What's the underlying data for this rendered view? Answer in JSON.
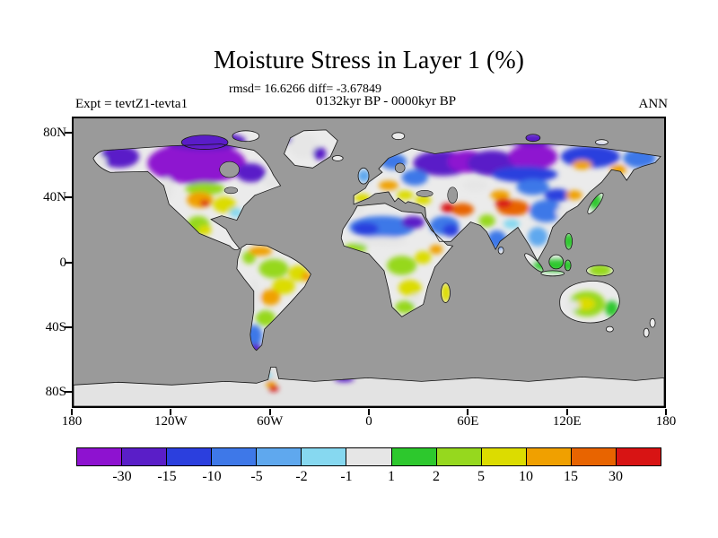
{
  "header": {
    "title": "Moisture Stress in Layer 1 (%)",
    "stats_line": "rmsd= 16.6266 diff= -3.67849",
    "period_line": "0132kyr BP - 0000kyr BP",
    "experiment_label": "Expt = tevtZ1-tevta1",
    "season_label": "ANN"
  },
  "axes": {
    "lat_ticks": [
      {
        "label": "80N",
        "lat": 80
      },
      {
        "label": "40N",
        "lat": 40
      },
      {
        "label": "0",
        "lat": 0
      },
      {
        "label": "40S",
        "lat": -40
      },
      {
        "label": "80S",
        "lat": -80
      }
    ],
    "lon_ticks": [
      {
        "label": "180",
        "lon": -180
      },
      {
        "label": "120W",
        "lon": -120
      },
      {
        "label": "60W",
        "lon": -60
      },
      {
        "label": "0",
        "lon": 0
      },
      {
        "label": "60E",
        "lon": 60
      },
      {
        "label": "120E",
        "lon": 120
      },
      {
        "label": "180",
        "lon": 180
      }
    ]
  },
  "colorbar": {
    "tick_labels": [
      "-30",
      "-15",
      "-10",
      "-5",
      "-2",
      "-1",
      "1",
      "2",
      "5",
      "10",
      "15",
      "30"
    ],
    "segments": [
      {
        "range": "< -30",
        "color": "#8E12D0"
      },
      {
        "range": "-30 to -15",
        "color": "#5A1EC8"
      },
      {
        "range": "-15 to -10",
        "color": "#2B3FDE"
      },
      {
        "range": "-10 to -5",
        "color": "#3E78E8"
      },
      {
        "range": "-5 to -2",
        "color": "#5FA8EE"
      },
      {
        "range": "-2 to -1",
        "color": "#86D8F0"
      },
      {
        "range": "-1 to 1",
        "color": "#E6E6E6"
      },
      {
        "range": "1 to 2",
        "color": "#2DC82D"
      },
      {
        "range": "2 to 5",
        "color": "#96D81E"
      },
      {
        "range": "5 to 10",
        "color": "#DCDC00"
      },
      {
        "range": "10 to 15",
        "color": "#F0A000"
      },
      {
        "range": "15 to 30",
        "color": "#E86400"
      },
      {
        "range": "> 30",
        "color": "#D81414"
      }
    ]
  },
  "map": {
    "ocean_color": "#9A9A9A",
    "land_base_color": "#EBEBEB",
    "antarctica_color": "#E3E3E3",
    "water_bodies": [
      {
        "name": "hudson-bay",
        "lon": -85,
        "lat": 58,
        "rlon": 6,
        "rlat": 5
      },
      {
        "name": "great-lakes",
        "lon": -84,
        "lat": 45,
        "rlon": 4,
        "rlat": 2
      },
      {
        "name": "baltic-sea",
        "lon": 19,
        "lat": 59,
        "rlon": 3,
        "rlat": 3
      },
      {
        "name": "black-sea",
        "lon": 34,
        "lat": 43,
        "rlon": 5,
        "rlat": 2
      },
      {
        "name": "caspian-sea",
        "lon": 51,
        "lat": 42,
        "rlon": 3,
        "rlat": 5
      }
    ]
  },
  "chart_data": {
    "type": "heatmap",
    "title": "Moisture Stress in Layer 1 (%)",
    "units": "%",
    "projection": "equirectangular",
    "lon_range": [
      -180,
      180
    ],
    "lat_range": [
      -90,
      90
    ],
    "rmsd": 16.6266,
    "diff": -3.67849,
    "scale_breaks": [
      -30,
      -15,
      -10,
      -5,
      -2,
      -1,
      1,
      2,
      5,
      10,
      15,
      30
    ],
    "legend_position": "bottom",
    "regions": [
      {
        "name": "canada-purple-core",
        "lon": -105,
        "lat": 62,
        "rlon": 30,
        "rlat": 13,
        "band": 0
      },
      {
        "name": "canadian-arctic-violet",
        "lon": -100,
        "lat": 76,
        "rlon": 25,
        "rlat": 6,
        "band": 1
      },
      {
        "name": "alaska-violet",
        "lon": -152,
        "lat": 66,
        "rlon": 12,
        "rlat": 7,
        "band": 1
      },
      {
        "name": "quebec-violet",
        "lon": -72,
        "lat": 56,
        "rlon": 9,
        "rlat": 6,
        "band": 1
      },
      {
        "name": "alaska-west-white",
        "lon": -165,
        "lat": 63,
        "rlon": 5,
        "rlat": 4,
        "band": 6
      },
      {
        "name": "newfoundland-white",
        "lon": -59,
        "lat": 50,
        "rlon": 5,
        "rlat": 4,
        "band": 6
      },
      {
        "name": "pacific-nw-white",
        "lon": -123,
        "lat": 46,
        "rlon": 4,
        "rlat": 7,
        "band": 6
      },
      {
        "name": "us-plains-green",
        "lon": -100,
        "lat": 46,
        "rlon": 12,
        "rlat": 4,
        "band": 8
      },
      {
        "name": "us-east-yellow",
        "lon": -88,
        "lat": 36,
        "rlon": 7,
        "rlat": 5,
        "band": 9
      },
      {
        "name": "us-central-orange",
        "lon": -103,
        "lat": 39,
        "rlon": 8,
        "rlat": 5,
        "band": 10
      },
      {
        "name": "us-central-red",
        "lon": -100,
        "lat": 37,
        "rlon": 3,
        "rlat": 2,
        "band": 12
      },
      {
        "name": "us-southeast-cyan",
        "lon": -81,
        "lat": 31,
        "rlon": 4,
        "rlat": 3,
        "band": 5
      },
      {
        "name": "mexico-green",
        "lon": -104,
        "lat": 23,
        "rlon": 7,
        "rlat": 6,
        "band": 8
      },
      {
        "name": "mexico-yellow",
        "lon": -100,
        "lat": 20,
        "rlon": 4,
        "rlat": 3,
        "band": 9
      },
      {
        "name": "greenland-white",
        "lon": -40,
        "lat": 73,
        "rlon": 9,
        "rlat": 8,
        "band": 6
      },
      {
        "name": "greenland-east-violet",
        "lon": -30,
        "lat": 68,
        "rlon": 4,
        "rlat": 4,
        "band": 1
      },
      {
        "name": "greenland-nw-violet",
        "lon": -52,
        "lat": 77,
        "rlon": 5,
        "rlat": 3,
        "band": 1
      },
      {
        "name": "amazon-green",
        "lon": -58,
        "lat": -4,
        "rlon": 9,
        "rlat": 6,
        "band": 8
      },
      {
        "name": "colombia-green",
        "lon": -73,
        "lat": 3,
        "rlon": 4,
        "rlat": 4,
        "band": 8
      },
      {
        "name": "venezuela-orange",
        "lon": -66,
        "lat": 7,
        "rlon": 7,
        "rlat": 3,
        "band": 10
      },
      {
        "name": "brazil-ne-yellow",
        "lon": -43,
        "lat": -7,
        "rlon": 6,
        "rlat": 5,
        "band": 9
      },
      {
        "name": "brazil-ne-orange",
        "lon": -38,
        "lat": -9,
        "rlon": 3,
        "rlat": 3,
        "band": 10
      },
      {
        "name": "brazil-central-yellow",
        "lon": -52,
        "lat": -15,
        "rlon": 7,
        "rlat": 5,
        "band": 9
      },
      {
        "name": "chaco-orange",
        "lon": -60,
        "lat": -22,
        "rlon": 6,
        "rlat": 5,
        "band": 10
      },
      {
        "name": "andes-white",
        "lon": -70,
        "lat": -20,
        "rlon": 3,
        "rlat": 10,
        "band": 6
      },
      {
        "name": "argentina-green",
        "lon": -63,
        "lat": -35,
        "rlon": 6,
        "rlat": 5,
        "band": 8
      },
      {
        "name": "patagonia-blue",
        "lon": -70,
        "lat": -46,
        "rlon": 5,
        "rlat": 7,
        "band": 3
      },
      {
        "name": "tierra-del-fuego-violet",
        "lon": -69,
        "lat": -54,
        "rlon": 4,
        "rlat": 3,
        "band": 1
      },
      {
        "name": "nw-russia-violet",
        "lon": 45,
        "lat": 62,
        "rlon": 18,
        "rlat": 8,
        "band": 1
      },
      {
        "name": "ural-purple",
        "lon": 60,
        "lat": 63,
        "rlon": 12,
        "rlat": 7,
        "band": 0
      },
      {
        "name": "scandinavia-blue",
        "lon": 15,
        "lat": 63,
        "rlon": 8,
        "rlat": 5,
        "band": 3
      },
      {
        "name": "east-europe-blue",
        "lon": 28,
        "lat": 53,
        "rlon": 8,
        "rlat": 5,
        "band": 3
      },
      {
        "name": "uk-blue",
        "lon": -3,
        "lat": 54,
        "rlon": 4,
        "rlat": 4,
        "band": 4
      },
      {
        "name": "spain-yellow",
        "lon": -4,
        "lat": 40,
        "rlon": 5,
        "rlat": 3,
        "band": 9
      },
      {
        "name": "central-europe-orange",
        "lon": 12,
        "lat": 48,
        "rlon": 6,
        "rlat": 3,
        "band": 10
      },
      {
        "name": "balkans-yellow",
        "lon": 22,
        "lat": 42,
        "rlon": 5,
        "rlat": 3,
        "band": 9
      },
      {
        "name": "anatolia-yellow",
        "lon": 33,
        "lat": 39,
        "rlon": 5,
        "rlat": 3,
        "band": 9
      },
      {
        "name": "west-siberia-violet",
        "lon": 75,
        "lat": 62,
        "rlon": 15,
        "rlat": 8,
        "band": 1
      },
      {
        "name": "central-siberia-purple",
        "lon": 100,
        "lat": 66,
        "rlon": 15,
        "rlat": 8,
        "band": 0
      },
      {
        "name": "arctic-russia-violet",
        "lon": 100,
        "lat": 77,
        "rlon": 20,
        "rlat": 4,
        "band": 1
      },
      {
        "name": "east-siberia-blue",
        "lon": 135,
        "lat": 66,
        "rlon": 18,
        "rlat": 7,
        "band": 2
      },
      {
        "name": "chukotka-blue",
        "lon": 165,
        "lat": 65,
        "rlon": 10,
        "rlat": 6,
        "band": 3
      },
      {
        "name": "south-siberia-blue",
        "lon": 95,
        "lat": 55,
        "rlon": 20,
        "rlat": 5,
        "band": 2
      },
      {
        "name": "mongolia-blue",
        "lon": 100,
        "lat": 47,
        "rlon": 10,
        "rlat": 5,
        "band": 3
      },
      {
        "name": "kazakh-white",
        "lon": 65,
        "lat": 48,
        "rlon": 8,
        "rlat": 4,
        "band": 6
      },
      {
        "name": "yakutia-orange",
        "lon": 130,
        "lat": 61,
        "rlon": 6,
        "rlat": 3,
        "band": 10
      },
      {
        "name": "okhotsk-orange",
        "lon": 152,
        "lat": 58,
        "rlon": 5,
        "rlat": 3,
        "band": 10
      },
      {
        "name": "north-china-blue",
        "lon": 115,
        "lat": 42,
        "rlon": 8,
        "rlat": 4,
        "band": 2
      },
      {
        "name": "china-blue",
        "lon": 108,
        "lat": 32,
        "rlon": 10,
        "rlat": 7,
        "band": 3
      },
      {
        "name": "east-china-white",
        "lon": 118,
        "lat": 31,
        "rlon": 4,
        "rlat": 4,
        "band": 6
      },
      {
        "name": "manchuria-orange",
        "lon": 125,
        "lat": 42,
        "rlon": 5,
        "rlat": 3,
        "band": 10
      },
      {
        "name": "japan-green",
        "lon": 138,
        "lat": 38,
        "rlon": 4,
        "rlat": 5,
        "band": 7
      },
      {
        "name": "indochina-blue",
        "lon": 103,
        "lat": 16,
        "rlon": 6,
        "rlat": 6,
        "band": 4
      },
      {
        "name": "south-india-blue",
        "lon": 78,
        "lat": 14,
        "rlon": 6,
        "rlat": 6,
        "band": 3
      },
      {
        "name": "nw-india-green",
        "lon": 72,
        "lat": 26,
        "rlon": 5,
        "rlat": 4,
        "band": 8
      },
      {
        "name": "ne-india-cyan",
        "lon": 87,
        "lat": 24,
        "rlon": 5,
        "rlat": 3,
        "band": 5
      },
      {
        "name": "xinjiang-orange",
        "lon": 80,
        "lat": 42,
        "rlon": 6,
        "rlat": 3,
        "band": 10
      },
      {
        "name": "tibet-dark-orange",
        "lon": 88,
        "lat": 34,
        "rlon": 10,
        "rlat": 5,
        "band": 11
      },
      {
        "name": "tibet-red",
        "lon": 82,
        "lat": 37,
        "rlon": 5,
        "rlat": 3,
        "band": 12
      },
      {
        "name": "iran-orange",
        "lon": 57,
        "lat": 33,
        "rlon": 7,
        "rlat": 4,
        "band": 11
      },
      {
        "name": "mideast-red",
        "lon": 48,
        "lat": 34,
        "rlon": 4,
        "rlat": 3,
        "band": 12
      },
      {
        "name": "arabia-blue",
        "lon": 46,
        "lat": 23,
        "rlon": 9,
        "rlat": 6,
        "band": 3
      },
      {
        "name": "arabia-dark-blue",
        "lon": 50,
        "lat": 20,
        "rlon": 5,
        "rlat": 4,
        "band": 2
      },
      {
        "name": "sahara-blue",
        "lon": 8,
        "lat": 22,
        "rlon": 20,
        "rlat": 7,
        "band": 3
      },
      {
        "name": "sahara-dark-blue",
        "lon": -2,
        "lat": 21,
        "rlon": 8,
        "rlat": 4,
        "band": 2
      },
      {
        "name": "egypt-violet",
        "lon": 27,
        "lat": 25,
        "rlon": 7,
        "rlat": 4,
        "band": 1
      },
      {
        "name": "morocco-white",
        "lon": -7,
        "lat": 33,
        "rlon": 4,
        "rlat": 3,
        "band": 6
      },
      {
        "name": "sahel-white",
        "lon": 8,
        "lat": 13,
        "rlon": 16,
        "rlat": 3,
        "band": 6
      },
      {
        "name": "west-africa-green",
        "lon": -8,
        "lat": 9,
        "rlon": 7,
        "rlat": 3,
        "band": 8
      },
      {
        "name": "congo-green",
        "lon": 20,
        "lat": -2,
        "rlon": 9,
        "rlat": 6,
        "band": 8
      },
      {
        "name": "east-africa-yellow",
        "lon": 33,
        "lat": 3,
        "rlon": 5,
        "rlat": 4,
        "band": 9
      },
      {
        "name": "horn-orange",
        "lon": 41,
        "lat": 8,
        "rlon": 4,
        "rlat": 3,
        "band": 10
      },
      {
        "name": "south-africa-yellow",
        "lon": 25,
        "lat": -16,
        "rlon": 7,
        "rlat": 5,
        "band": 9
      },
      {
        "name": "south-africa-green",
        "lon": 22,
        "lat": -28,
        "rlon": 6,
        "rlat": 4,
        "band": 8
      },
      {
        "name": "south-africa-white",
        "lon": 29,
        "lat": -23,
        "rlon": 3,
        "rlat": 3,
        "band": 6
      },
      {
        "name": "madagascar-yellow",
        "lon": 47,
        "lat": -19,
        "rlon": 3,
        "rlat": 6,
        "band": 9
      },
      {
        "name": "indonesia-green",
        "lon": 115,
        "lat": -2,
        "rlon": 15,
        "rlat": 4,
        "band": 7
      },
      {
        "name": "new-guinea-green",
        "lon": 141,
        "lat": -5,
        "rlon": 7,
        "rlat": 4,
        "band": 8
      },
      {
        "name": "philippines-green",
        "lon": 122,
        "lat": 13,
        "rlon": 4,
        "rlat": 5,
        "band": 7
      },
      {
        "name": "australia-green",
        "lon": 133,
        "lat": -26,
        "rlon": 11,
        "rlat": 8,
        "band": 8
      },
      {
        "name": "australia-yellow",
        "lon": 132,
        "lat": -26,
        "rlon": 6,
        "rlat": 4,
        "band": 9
      },
      {
        "name": "australia-white",
        "lon": 124,
        "lat": -27,
        "rlon": 4,
        "rlat": 3,
        "band": 6
      },
      {
        "name": "australia-east-green",
        "lon": 148,
        "lat": -29,
        "rlon": 4,
        "rlat": 5,
        "band": 7
      },
      {
        "name": "antarctic-peninsula-cyan",
        "lon": -62,
        "lat": -71,
        "rlon": 3,
        "rlat": 2,
        "band": 5
      },
      {
        "name": "antarctic-peninsula-orange",
        "lon": -60,
        "lat": -76,
        "rlon": 3,
        "rlat": 2,
        "band": 10
      },
      {
        "name": "antarctic-peninsula-red",
        "lon": -58,
        "lat": -79,
        "rlon": 3,
        "rlat": 2,
        "band": 12
      },
      {
        "name": "antarctic-coast-violet",
        "lon": -15,
        "lat": -73,
        "rlon": 6,
        "rlat": 2,
        "band": 1
      }
    ]
  }
}
